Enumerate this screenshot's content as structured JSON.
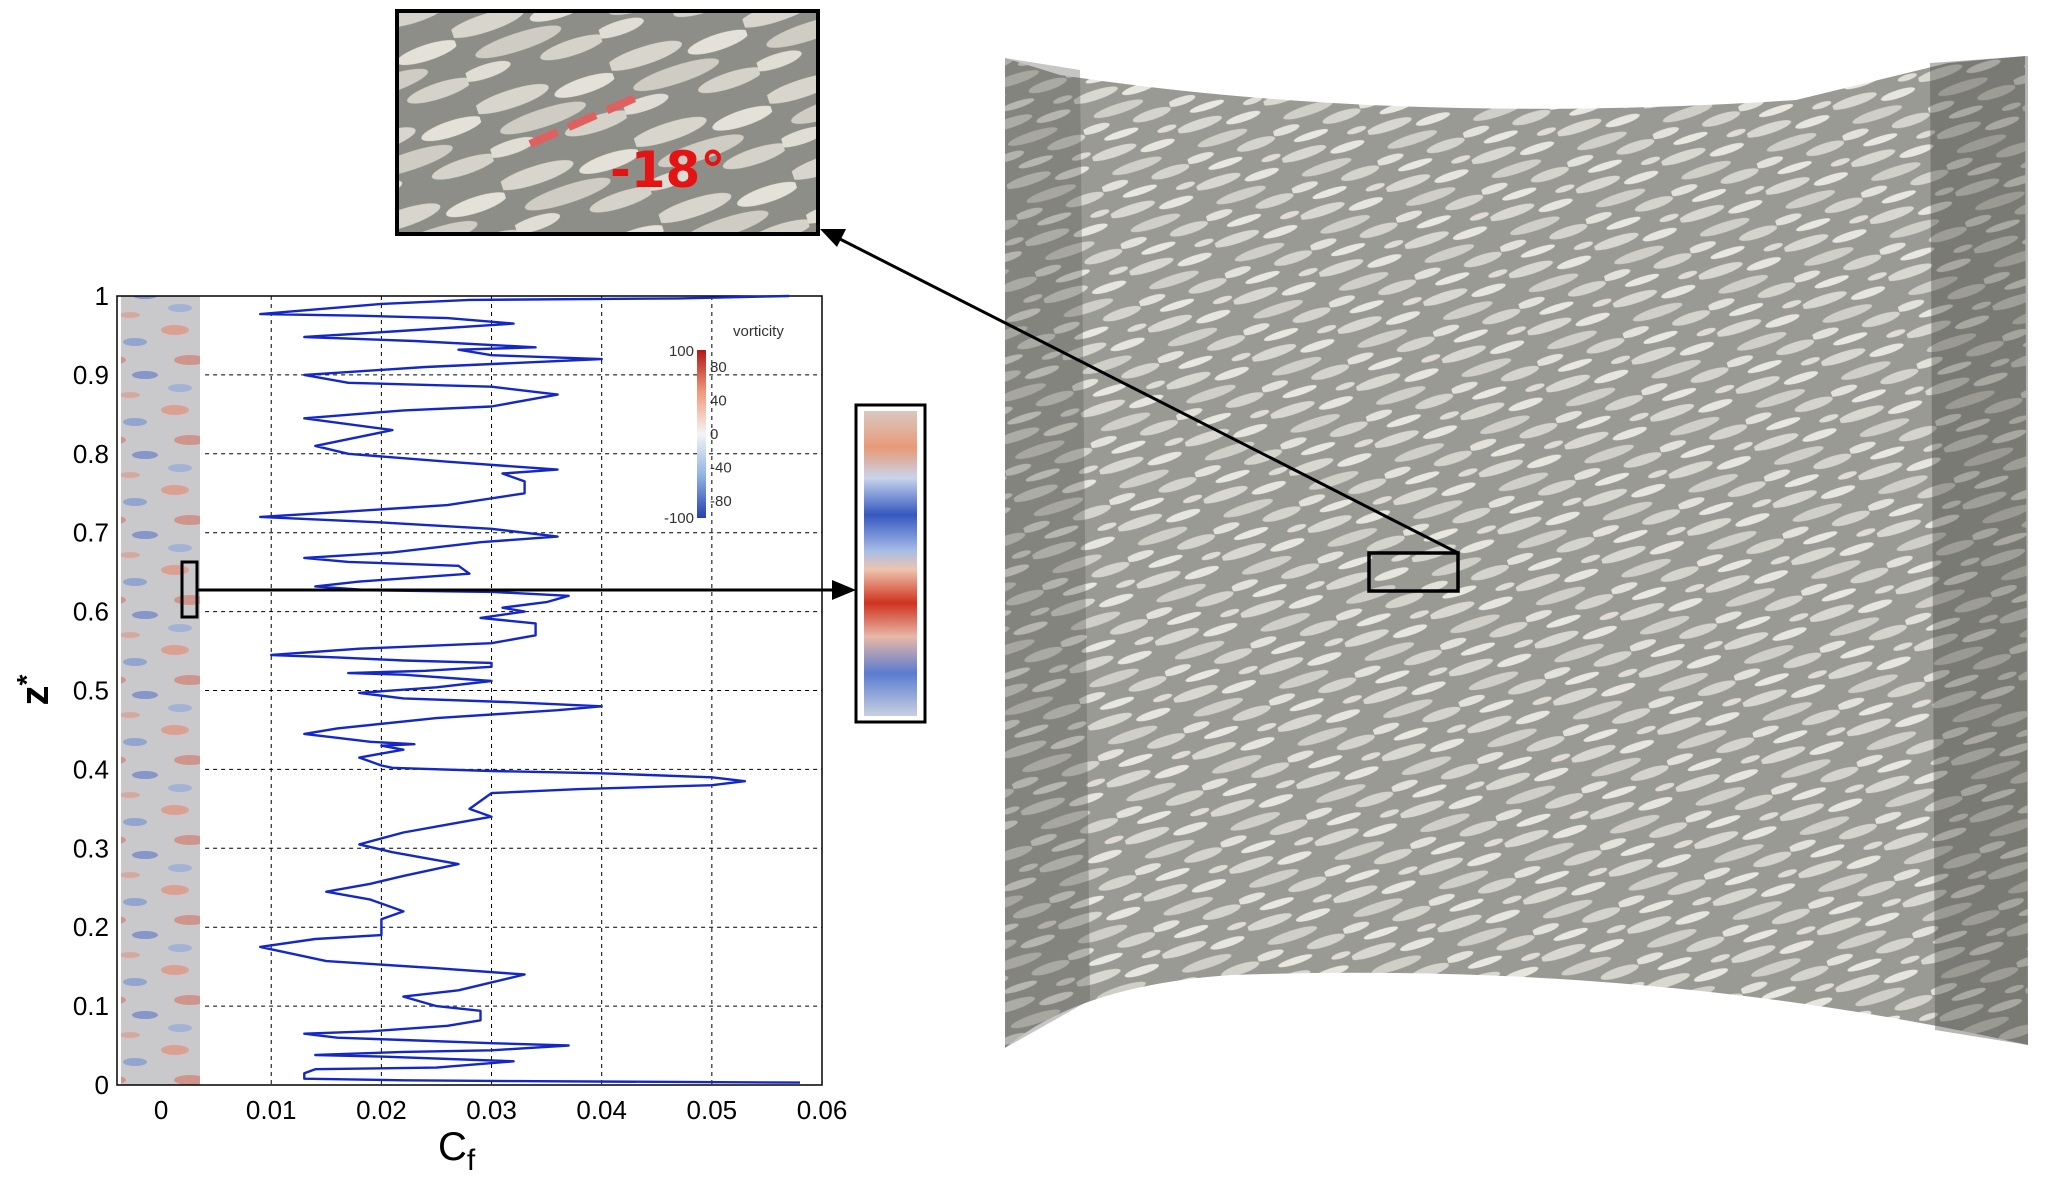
{
  "chart_data": {
    "type": "line",
    "xlabel": "C",
    "xlabel_sub": "f",
    "ylabel": "z",
    "ylabel_sup": "*",
    "xlim": [
      -0.004,
      0.06
    ],
    "ylim": [
      0,
      1
    ],
    "x_ticks": [
      0,
      0.01,
      0.02,
      0.03,
      0.04,
      0.05,
      0.06
    ],
    "x_tick_labels": [
      "0",
      "0.01",
      "0.02",
      "0.03",
      "0.04",
      "0.05",
      "0.06"
    ],
    "y_ticks": [
      0,
      0.1,
      0.2,
      0.3,
      0.4,
      0.5,
      0.6,
      0.7,
      0.8,
      0.9,
      1
    ],
    "y_tick_labels": [
      "0",
      "0.1",
      "0.2",
      "0.3",
      "0.4",
      "0.5",
      "0.6",
      "0.7",
      "0.8",
      "0.9",
      "1"
    ],
    "grid": true,
    "series": [
      {
        "color": "#1428c8",
        "points": [
          [
            0.058,
            0.003
          ],
          [
            0.032,
            0.005
          ],
          [
            0.022,
            0.006
          ],
          [
            0.013,
            0.008
          ],
          [
            0.013,
            0.015
          ],
          [
            0.014,
            0.02
          ],
          [
            0.025,
            0.022
          ],
          [
            0.032,
            0.03
          ],
          [
            0.02,
            0.036
          ],
          [
            0.014,
            0.038
          ],
          [
            0.022,
            0.042
          ],
          [
            0.03,
            0.044
          ],
          [
            0.037,
            0.05
          ],
          [
            0.03,
            0.053
          ],
          [
            0.022,
            0.057
          ],
          [
            0.016,
            0.06
          ],
          [
            0.013,
            0.065
          ],
          [
            0.019,
            0.068
          ],
          [
            0.026,
            0.075
          ],
          [
            0.029,
            0.082
          ],
          [
            0.029,
            0.094
          ],
          [
            0.025,
            0.1
          ],
          [
            0.022,
            0.112
          ],
          [
            0.027,
            0.12
          ],
          [
            0.033,
            0.14
          ],
          [
            0.025,
            0.148
          ],
          [
            0.015,
            0.157
          ],
          [
            0.009,
            0.175
          ],
          [
            0.014,
            0.185
          ],
          [
            0.02,
            0.19
          ],
          [
            0.02,
            0.21
          ],
          [
            0.022,
            0.22
          ],
          [
            0.019,
            0.235
          ],
          [
            0.015,
            0.245
          ],
          [
            0.019,
            0.255
          ],
          [
            0.022,
            0.265
          ],
          [
            0.027,
            0.28
          ],
          [
            0.021,
            0.295
          ],
          [
            0.018,
            0.305
          ],
          [
            0.022,
            0.32
          ],
          [
            0.026,
            0.33
          ],
          [
            0.03,
            0.34
          ],
          [
            0.028,
            0.35
          ],
          [
            0.03,
            0.37
          ],
          [
            0.038,
            0.375
          ],
          [
            0.05,
            0.38
          ],
          [
            0.053,
            0.385
          ],
          [
            0.05,
            0.39
          ],
          [
            0.04,
            0.395
          ],
          [
            0.03,
            0.398
          ],
          [
            0.023,
            0.401
          ],
          [
            0.021,
            0.402
          ],
          [
            0.02,
            0.405
          ],
          [
            0.019,
            0.41
          ],
          [
            0.018,
            0.415
          ],
          [
            0.02,
            0.42
          ],
          [
            0.022,
            0.425
          ],
          [
            0.02,
            0.43
          ],
          [
            0.023,
            0.432
          ],
          [
            0.019,
            0.435
          ],
          [
            0.016,
            0.44
          ],
          [
            0.013,
            0.445
          ],
          [
            0.016,
            0.452
          ],
          [
            0.025,
            0.465
          ],
          [
            0.036,
            0.475
          ],
          [
            0.04,
            0.48
          ],
          [
            0.032,
            0.485
          ],
          [
            0.022,
            0.49
          ],
          [
            0.018,
            0.497
          ],
          [
            0.025,
            0.504
          ],
          [
            0.03,
            0.512
          ],
          [
            0.022,
            0.52
          ],
          [
            0.017,
            0.522
          ],
          [
            0.024,
            0.525
          ],
          [
            0.03,
            0.53
          ],
          [
            0.03,
            0.535
          ],
          [
            0.022,
            0.538
          ],
          [
            0.016,
            0.542
          ],
          [
            0.01,
            0.545
          ],
          [
            0.018,
            0.553
          ],
          [
            0.03,
            0.56
          ],
          [
            0.034,
            0.57
          ],
          [
            0.034,
            0.585
          ],
          [
            0.029,
            0.592
          ],
          [
            0.033,
            0.6
          ],
          [
            0.031,
            0.605
          ],
          [
            0.035,
            0.612
          ],
          [
            0.037,
            0.62
          ],
          [
            0.03,
            0.625
          ],
          [
            0.019,
            0.627
          ],
          [
            0.014,
            0.632
          ],
          [
            0.018,
            0.638
          ],
          [
            0.028,
            0.648
          ],
          [
            0.027,
            0.658
          ],
          [
            0.017,
            0.663
          ],
          [
            0.013,
            0.668
          ],
          [
            0.021,
            0.675
          ],
          [
            0.029,
            0.688
          ],
          [
            0.036,
            0.695
          ],
          [
            0.03,
            0.705
          ],
          [
            0.02,
            0.713
          ],
          [
            0.009,
            0.72
          ],
          [
            0.016,
            0.726
          ],
          [
            0.026,
            0.735
          ],
          [
            0.033,
            0.75
          ],
          [
            0.033,
            0.765
          ],
          [
            0.031,
            0.775
          ],
          [
            0.036,
            0.78
          ],
          [
            0.026,
            0.79
          ],
          [
            0.017,
            0.8
          ],
          [
            0.014,
            0.81
          ],
          [
            0.021,
            0.83
          ],
          [
            0.013,
            0.845
          ],
          [
            0.022,
            0.855
          ],
          [
            0.03,
            0.86
          ],
          [
            0.036,
            0.875
          ],
          [
            0.03,
            0.885
          ],
          [
            0.017,
            0.89
          ],
          [
            0.013,
            0.9
          ],
          [
            0.024,
            0.91
          ],
          [
            0.04,
            0.92
          ],
          [
            0.03,
            0.925
          ],
          [
            0.027,
            0.932
          ],
          [
            0.034,
            0.935
          ],
          [
            0.023,
            0.943
          ],
          [
            0.013,
            0.948
          ],
          [
            0.021,
            0.955
          ],
          [
            0.032,
            0.965
          ],
          [
            0.026,
            0.972
          ],
          [
            0.018,
            0.975
          ],
          [
            0.009,
            0.977
          ],
          [
            0.014,
            0.983
          ],
          [
            0.02,
            0.99
          ],
          [
            0.028,
            0.995
          ],
          [
            0.047,
            0.997
          ],
          [
            0.057,
            1.0
          ]
        ]
      }
    ],
    "colorbar": {
      "title": "vorticity",
      "left_labels": [
        "100",
        "-100"
      ],
      "right_labels": [
        "80",
        "40",
        "0",
        "-40",
        "-80"
      ],
      "colors": [
        "#c8281e",
        "#f0c0a8",
        "#f5f5f5",
        "#a8c4e8",
        "#2844b4"
      ]
    },
    "annotations": [
      "-18°"
    ]
  }
}
